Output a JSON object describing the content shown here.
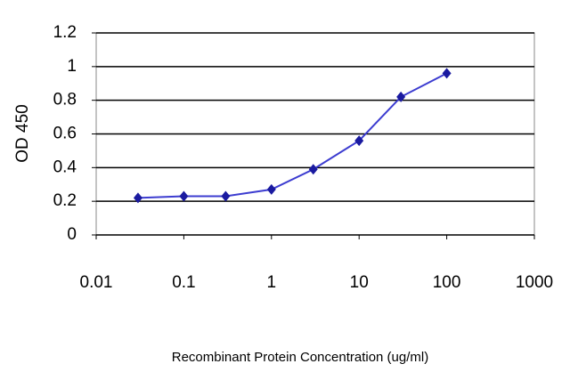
{
  "chart_data": {
    "type": "line",
    "x_label": "Recombinant Protein Concentration (ug/ml)",
    "y_label": "OD 450",
    "x": [
      0.03,
      0.1,
      0.3,
      1,
      3,
      10,
      30,
      100
    ],
    "series": [
      {
        "color": "#1a1aa0",
        "values": [
          0.22,
          0.23,
          0.23,
          0.27,
          0.39,
          0.56,
          0.82,
          0.96
        ]
      }
    ],
    "xscale": "log",
    "xlim": [
      0.01,
      1000
    ],
    "xticks": [
      0.01,
      0.1,
      1,
      10,
      100,
      1000
    ],
    "ylim": [
      0,
      1.2
    ],
    "yticks": [
      0,
      0.2,
      0.4,
      0.6,
      0.8,
      1,
      1.2
    ],
    "grid": true
  }
}
